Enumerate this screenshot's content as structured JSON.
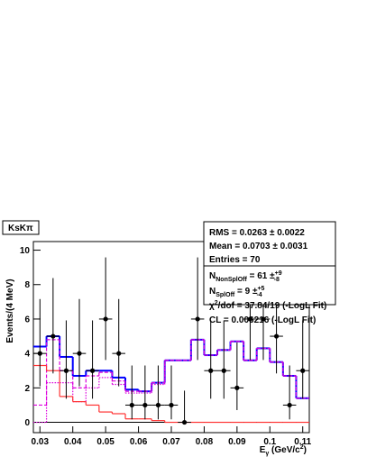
{
  "chart_data": {
    "type": "histogram",
    "title": "KsKπ",
    "x_label": {
      "main": "E",
      "sub": "γ",
      "rest": " (GeV/c",
      "sup": "2",
      "end": ")"
    },
    "y_label": "Events/(4 MeV)",
    "xlim": [
      0.028,
      0.112
    ],
    "ylim": [
      -0.6,
      10.5
    ],
    "xticks": [
      0.03,
      0.04,
      0.05,
      0.06,
      0.07,
      0.08,
      0.09,
      0.1,
      0.11
    ],
    "yticks": [
      0,
      2,
      4,
      6,
      8,
      10
    ],
    "bins": [
      0.028,
      0.032,
      0.036,
      0.04,
      0.044,
      0.048,
      0.052,
      0.056,
      0.06,
      0.064,
      0.068,
      0.072,
      0.076,
      0.08,
      0.084,
      0.088,
      0.092,
      0.096,
      0.1,
      0.104,
      0.108,
      0.112
    ],
    "series": [
      {
        "color": "#0000ff",
        "style": "solid",
        "values": [
          4.4,
          5.0,
          3.8,
          2.7,
          3.0,
          3.0,
          2.6,
          1.9,
          1.8,
          2.3,
          3.6,
          3.6,
          4.8,
          3.9,
          4.2,
          4.7,
          3.6,
          4.3,
          3.5,
          2.7,
          1.4
        ]
      },
      {
        "color": "#dd00dd",
        "style": "dashed",
        "values": [
          1.0,
          4.8,
          3.0,
          2.0,
          2.7,
          2.9,
          2.4,
          1.8,
          1.8,
          2.3,
          3.6,
          3.6,
          4.8,
          3.9,
          4.2,
          4.7,
          3.6,
          4.3,
          3.5,
          2.7,
          1.4
        ]
      },
      {
        "color": "#dd00dd",
        "style": "dotted",
        "values": [
          0,
          2.3,
          2.3,
          1.2,
          2.0,
          2.6,
          2.2,
          1.7,
          1.7,
          2.2,
          3.6,
          3.6,
          4.8,
          3.9,
          4.2,
          4.7,
          3.6,
          4.3,
          3.5,
          2.7,
          1.4
        ]
      },
      {
        "color": "#ff3333",
        "style": "solid",
        "values": [
          3.3,
          3.0,
          1.5,
          1.2,
          1.0,
          0.6,
          0.5,
          0.2,
          0.2,
          0.1,
          0,
          0,
          0,
          0,
          0,
          0,
          0,
          0,
          0,
          0,
          0
        ]
      }
    ],
    "points": {
      "color": "#000000",
      "x": [
        0.03,
        0.034,
        0.038,
        0.042,
        0.046,
        0.05,
        0.054,
        0.058,
        0.062,
        0.066,
        0.07,
        0.074,
        0.078,
        0.082,
        0.086,
        0.09,
        0.094,
        0.098,
        0.102,
        0.106,
        0.11
      ],
      "values": [
        4,
        5,
        3,
        4,
        3,
        6,
        4,
        1,
        1,
        1,
        1,
        0,
        6,
        3,
        3,
        2,
        6,
        6,
        5,
        1,
        3
      ],
      "error_low": [
        1.91,
        2.16,
        1.63,
        1.91,
        1.63,
        2.38,
        1.91,
        0.83,
        0.83,
        0.83,
        0.83,
        0,
        2.38,
        1.63,
        1.63,
        1.29,
        2.38,
        2.38,
        2.16,
        0.83,
        1.63
      ],
      "error_high": [
        3.16,
        3.38,
        2.92,
        3.16,
        2.92,
        3.58,
        3.16,
        2.3,
        2.3,
        2.3,
        2.3,
        1.84,
        3.58,
        2.92,
        2.92,
        2.64,
        3.58,
        3.58,
        3.38,
        2.3,
        2.92
      ]
    },
    "stats": {
      "rms": "RMS = 0.0263 ± 0.0022",
      "mean": "Mean = 0.0703 ± 0.0031",
      "entries": "Entries = 70",
      "n_nonsploff": {
        "main": "N",
        "sub": "NonSplOff",
        "rest": " =  61 ±",
        "sup": "+9",
        "low": "-8"
      },
      "n_sploff": {
        "main": "N",
        "sub": "SplOff",
        "rest": " =  9 ±",
        "sup": "+5",
        "low": "-4"
      },
      "chi2": {
        "main": "χ",
        "sup": "2",
        "rest": "/dof = 37.84/19 (-LogL Fit)"
      },
      "cl": "CL = 0.006216 (-LogL Fit)"
    }
  }
}
